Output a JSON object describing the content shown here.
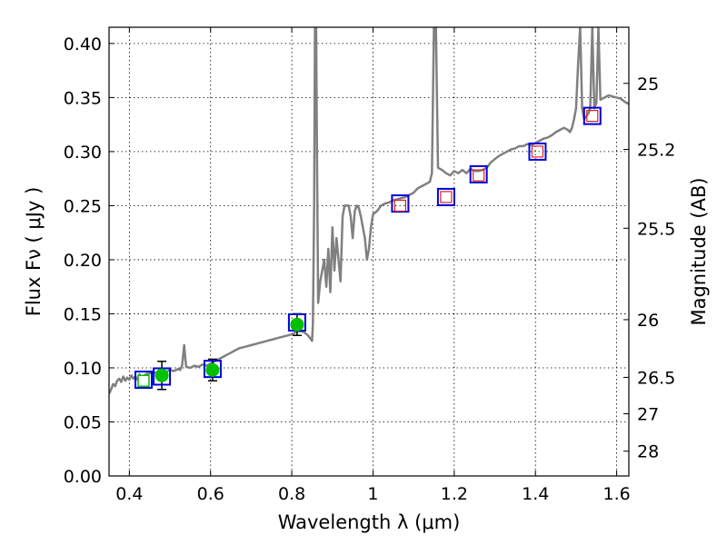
{
  "chart_data": {
    "type": "scatter",
    "xlabel": "Wavelength  λ (μm)",
    "ylabel": "Flux  Fν  ( μJy )",
    "y2label": "Magnitude (AB)",
    "xlim": [
      0.35,
      1.63
    ],
    "ylim": [
      0.0,
      0.415
    ],
    "grid": true,
    "x_ticks": [
      {
        "value": 0.4,
        "label": "0.4"
      },
      {
        "value": 0.6,
        "label": "0.6"
      },
      {
        "value": 0.8,
        "label": "0.8"
      },
      {
        "value": 1.0,
        "label": "1"
      },
      {
        "value": 1.2,
        "label": "1.2"
      },
      {
        "value": 1.4,
        "label": "1.4"
      },
      {
        "value": 1.6,
        "label": "1.6"
      }
    ],
    "y_ticks": [
      {
        "value": 0.0,
        "label": "0.00"
      },
      {
        "value": 0.05,
        "label": "0.05"
      },
      {
        "value": 0.1,
        "label": "0.10"
      },
      {
        "value": 0.15,
        "label": "0.15"
      },
      {
        "value": 0.2,
        "label": "0.20"
      },
      {
        "value": 0.25,
        "label": "0.25"
      },
      {
        "value": 0.3,
        "label": "0.30"
      },
      {
        "value": 0.35,
        "label": "0.35"
      },
      {
        "value": 0.4,
        "label": "0.40"
      }
    ],
    "y2_ticks": [
      {
        "value": 25.0,
        "label": "25"
      },
      {
        "value": 25.2,
        "label": "25.2"
      },
      {
        "value": 25.5,
        "label": "25.5"
      },
      {
        "value": 26.0,
        "label": "26"
      },
      {
        "value": 26.5,
        "label": "26.5"
      },
      {
        "value": 27.0,
        "label": "27"
      },
      {
        "value": 28.0,
        "label": "28"
      }
    ],
    "series": [
      {
        "name": "model spectrum",
        "kind": "line",
        "color": "#808080",
        "points": [
          [
            0.35,
            0.076
          ],
          [
            0.355,
            0.08
          ],
          [
            0.36,
            0.085
          ],
          [
            0.365,
            0.083
          ],
          [
            0.37,
            0.088
          ],
          [
            0.375,
            0.09
          ],
          [
            0.38,
            0.087
          ],
          [
            0.385,
            0.092
          ],
          [
            0.39,
            0.088
          ],
          [
            0.395,
            0.091
          ],
          [
            0.4,
            0.089
          ],
          [
            0.405,
            0.093
          ],
          [
            0.41,
            0.09
          ],
          [
            0.415,
            0.092
          ],
          [
            0.42,
            0.089
          ],
          [
            0.425,
            0.094
          ],
          [
            0.43,
            0.091
          ],
          [
            0.435,
            0.09
          ],
          [
            0.44,
            0.094
          ],
          [
            0.45,
            0.095
          ],
          [
            0.46,
            0.096
          ],
          [
            0.47,
            0.095
          ],
          [
            0.48,
            0.097
          ],
          [
            0.49,
            0.096
          ],
          [
            0.5,
            0.098
          ],
          [
            0.51,
            0.097
          ],
          [
            0.52,
            0.099
          ],
          [
            0.525,
            0.098
          ],
          [
            0.53,
            0.102
          ],
          [
            0.532,
            0.11
          ],
          [
            0.535,
            0.121
          ],
          [
            0.538,
            0.108
          ],
          [
            0.54,
            0.101
          ],
          [
            0.55,
            0.1
          ],
          [
            0.56,
            0.102
          ],
          [
            0.57,
            0.101
          ],
          [
            0.58,
            0.103
          ],
          [
            0.59,
            0.102
          ],
          [
            0.6,
            0.104
          ],
          [
            0.61,
            0.106
          ],
          [
            0.62,
            0.108
          ],
          [
            0.63,
            0.11
          ],
          [
            0.64,
            0.112
          ],
          [
            0.65,
            0.114
          ],
          [
            0.66,
            0.116
          ],
          [
            0.67,
            0.118
          ],
          [
            0.68,
            0.119
          ],
          [
            0.69,
            0.12
          ],
          [
            0.7,
            0.121
          ],
          [
            0.71,
            0.122
          ],
          [
            0.72,
            0.123
          ],
          [
            0.73,
            0.124
          ],
          [
            0.74,
            0.125
          ],
          [
            0.75,
            0.126
          ],
          [
            0.76,
            0.127
          ],
          [
            0.77,
            0.128
          ],
          [
            0.78,
            0.129
          ],
          [
            0.79,
            0.13
          ],
          [
            0.8,
            0.131
          ],
          [
            0.81,
            0.133
          ],
          [
            0.82,
            0.134
          ],
          [
            0.83,
            0.133
          ],
          [
            0.84,
            0.13
          ],
          [
            0.85,
            0.125
          ],
          [
            0.852,
            0.14
          ],
          [
            0.855,
            0.25
          ],
          [
            0.857,
            0.415
          ],
          [
            0.86,
            0.415
          ],
          [
            0.862,
            0.3
          ],
          [
            0.865,
            0.16
          ],
          [
            0.87,
            0.18
          ],
          [
            0.875,
            0.19
          ],
          [
            0.88,
            0.2
          ],
          [
            0.885,
            0.175
          ],
          [
            0.89,
            0.21
          ],
          [
            0.895,
            0.17
          ],
          [
            0.9,
            0.23
          ],
          [
            0.905,
            0.19
          ],
          [
            0.91,
            0.22
          ],
          [
            0.915,
            0.2
          ],
          [
            0.92,
            0.18
          ],
          [
            0.925,
            0.24
          ],
          [
            0.93,
            0.25
          ],
          [
            0.935,
            0.25
          ],
          [
            0.94,
            0.25
          ],
          [
            0.945,
            0.24
          ],
          [
            0.95,
            0.22
          ],
          [
            0.955,
            0.245
          ],
          [
            0.96,
            0.25
          ],
          [
            0.965,
            0.248
          ],
          [
            0.97,
            0.24
          ],
          [
            0.975,
            0.23
          ],
          [
            0.98,
            0.22
          ],
          [
            0.985,
            0.2
          ],
          [
            0.99,
            0.21
          ],
          [
            0.995,
            0.23
          ],
          [
            1.0,
            0.242
          ],
          [
            1.01,
            0.245
          ],
          [
            1.02,
            0.25
          ],
          [
            1.03,
            0.252
          ],
          [
            1.04,
            0.253
          ],
          [
            1.05,
            0.255
          ],
          [
            1.06,
            0.256
          ],
          [
            1.07,
            0.257
          ],
          [
            1.08,
            0.258
          ],
          [
            1.09,
            0.26
          ],
          [
            1.1,
            0.262
          ],
          [
            1.11,
            0.266
          ],
          [
            1.12,
            0.268
          ],
          [
            1.13,
            0.27
          ],
          [
            1.14,
            0.272
          ],
          [
            1.145,
            0.28
          ],
          [
            1.15,
            0.415
          ],
          [
            1.155,
            0.415
          ],
          [
            1.16,
            0.285
          ],
          [
            1.17,
            0.283
          ],
          [
            1.18,
            0.28
          ],
          [
            1.19,
            0.278
          ],
          [
            1.2,
            0.282
          ],
          [
            1.21,
            0.28
          ],
          [
            1.22,
            0.283
          ],
          [
            1.23,
            0.28
          ],
          [
            1.24,
            0.284
          ],
          [
            1.25,
            0.282
          ],
          [
            1.26,
            0.282
          ],
          [
            1.27,
            0.283
          ],
          [
            1.28,
            0.285
          ],
          [
            1.29,
            0.29
          ],
          [
            1.3,
            0.293
          ],
          [
            1.31,
            0.296
          ],
          [
            1.32,
            0.298
          ],
          [
            1.33,
            0.3
          ],
          [
            1.34,
            0.302
          ],
          [
            1.35,
            0.303
          ],
          [
            1.36,
            0.305
          ],
          [
            1.37,
            0.305
          ],
          [
            1.38,
            0.307
          ],
          [
            1.39,
            0.306
          ],
          [
            1.4,
            0.308
          ],
          [
            1.41,
            0.31
          ],
          [
            1.42,
            0.312
          ],
          [
            1.43,
            0.313
          ],
          [
            1.44,
            0.315
          ],
          [
            1.45,
            0.318
          ],
          [
            1.46,
            0.32
          ],
          [
            1.47,
            0.322
          ],
          [
            1.48,
            0.32
          ],
          [
            1.485,
            0.318
          ],
          [
            1.49,
            0.322
          ],
          [
            1.495,
            0.33
          ],
          [
            1.5,
            0.34
          ],
          [
            1.505,
            0.38
          ],
          [
            1.51,
            0.415
          ],
          [
            1.515,
            0.34
          ],
          [
            1.52,
            0.33
          ],
          [
            1.53,
            0.335
          ],
          [
            1.535,
            0.34
          ],
          [
            1.54,
            0.415
          ],
          [
            1.545,
            0.34
          ],
          [
            1.55,
            0.345
          ],
          [
            1.555,
            0.415
          ],
          [
            1.56,
            0.348
          ],
          [
            1.57,
            0.35
          ],
          [
            1.58,
            0.352
          ],
          [
            1.59,
            0.351
          ],
          [
            1.6,
            0.35
          ],
          [
            1.61,
            0.349
          ],
          [
            1.62,
            0.346
          ],
          [
            1.63,
            0.344
          ]
        ]
      },
      {
        "name": "observed photometry (green)",
        "kind": "errorbar",
        "color": "#00c000",
        "points": [
          {
            "x": 0.435,
            "y": 0.088,
            "yerr": 0.0
          },
          {
            "x": 0.48,
            "y": 0.093,
            "yerr": 0.013
          },
          {
            "x": 0.605,
            "y": 0.098,
            "yerr": 0.01
          },
          {
            "x": 0.813,
            "y": 0.14,
            "yerr": 0.01
          }
        ]
      },
      {
        "name": "model photometry (blue squares)",
        "kind": "square",
        "color": "#0000dd",
        "points": [
          {
            "x": 0.435,
            "y": 0.089
          },
          {
            "x": 0.48,
            "y": 0.092
          },
          {
            "x": 0.605,
            "y": 0.099
          },
          {
            "x": 0.813,
            "y": 0.142
          },
          {
            "x": 1.067,
            "y": 0.252
          },
          {
            "x": 1.18,
            "y": 0.258
          },
          {
            "x": 1.26,
            "y": 0.279
          },
          {
            "x": 1.405,
            "y": 0.3
          },
          {
            "x": 1.54,
            "y": 0.333
          }
        ]
      },
      {
        "name": "predicted photometry (red squares)",
        "kind": "square-small",
        "color": "#dd2222",
        "points": [
          {
            "x": 1.067,
            "y": 0.25
          },
          {
            "x": 1.18,
            "y": 0.258
          },
          {
            "x": 1.26,
            "y": 0.278
          },
          {
            "x": 1.405,
            "y": 0.3
          },
          {
            "x": 1.54,
            "y": 0.333
          }
        ]
      }
    ]
  }
}
